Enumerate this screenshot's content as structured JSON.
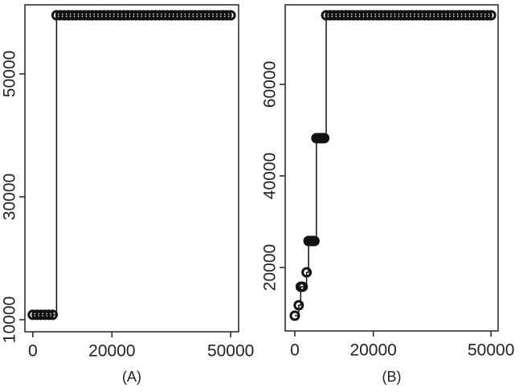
{
  "chart_data": [
    {
      "type": "step",
      "xlabel": "(A)",
      "color": "#111111",
      "x": [
        0,
        1000,
        2000,
        3000,
        4000,
        5000,
        6000,
        7000,
        8000,
        9000,
        10000,
        11000,
        12000,
        13000,
        14000,
        15000,
        16000,
        17000,
        18000,
        19000,
        20000,
        21000,
        22000,
        23000,
        24000,
        25000,
        26000,
        27000,
        28000,
        29000,
        30000,
        31000,
        32000,
        33000,
        34000,
        35000,
        36000,
        37000,
        38000,
        39000,
        40000,
        41000,
        42000,
        43000,
        44000,
        45000,
        46000,
        47000,
        48000,
        49000,
        50000
      ],
      "values": [
        10800,
        10800,
        10800,
        10800,
        10800,
        10800,
        59540,
        59540,
        59540,
        59540,
        59540,
        59540,
        59540,
        59540,
        59540,
        59540,
        59540,
        59540,
        59540,
        59540,
        59540,
        59540,
        59540,
        59540,
        59540,
        59540,
        59540,
        59540,
        59540,
        59540,
        59540,
        59540,
        59540,
        59540,
        59540,
        59540,
        59540,
        59540,
        59540,
        59540,
        59540,
        59540,
        59540,
        59540,
        59540,
        59540,
        59540,
        59540,
        59540,
        59540,
        59540
      ],
      "xlim": [
        -2000,
        52000
      ],
      "xticks": [
        0,
        20000,
        50000
      ],
      "ylim": [
        8040,
        61240
      ],
      "yticks": [
        10000,
        30000,
        50000
      ]
    },
    {
      "type": "step",
      "xlabel": "(B)",
      "color": "#111111",
      "x": [
        0,
        1000,
        1500,
        2000,
        3000,
        3500,
        4000,
        4500,
        5000,
        5500,
        6000,
        6500,
        7000,
        7500,
        8000,
        9000,
        10000,
        11000,
        12000,
        13000,
        14000,
        15000,
        16000,
        17000,
        18000,
        19000,
        20000,
        21000,
        22000,
        23000,
        24000,
        25000,
        26000,
        27000,
        28000,
        29000,
        30000,
        31000,
        32000,
        33000,
        34000,
        35000,
        36000,
        37000,
        38000,
        39000,
        40000,
        41000,
        42000,
        43000,
        44000,
        45000,
        46000,
        47000,
        48000,
        49000,
        50000
      ],
      "values": [
        9470,
        11750,
        15800,
        15800,
        18950,
        25790,
        25790,
        25790,
        25790,
        48250,
        48250,
        48250,
        48250,
        48250,
        75090,
        75090,
        75090,
        75090,
        75090,
        75090,
        75090,
        75090,
        75090,
        75090,
        75090,
        75090,
        75090,
        75090,
        75090,
        75090,
        75090,
        75090,
        75090,
        75090,
        75090,
        75090,
        75090,
        75090,
        75090,
        75090,
        75090,
        75090,
        75090,
        75090,
        75090,
        75090,
        75090,
        75090,
        75090,
        75090,
        75090,
        75090,
        75090,
        75090,
        75090,
        75090,
        75090
      ],
      "xlim": [
        -2450,
        51800
      ],
      "xticks": [
        0,
        20000,
        50000
      ],
      "ylim": [
        6140,
        77370
      ],
      "yticks": [
        20000,
        40000,
        60000
      ]
    }
  ]
}
